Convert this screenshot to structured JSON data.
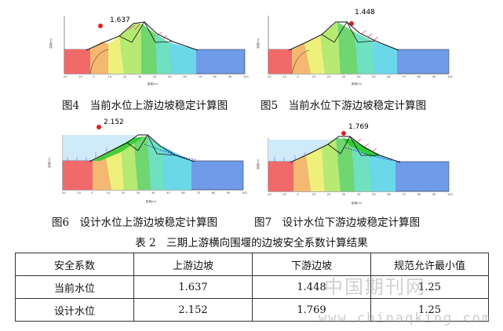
{
  "figures": [
    {
      "caption": "图4　当前水位上游边坡稳定计算图",
      "fs": "1.637",
      "scenario": "current-upstream"
    },
    {
      "caption": "图5　当前水位下游边坡稳定计算图",
      "fs": "1.448",
      "scenario": "current-downstream"
    },
    {
      "caption": "图6　设计水位上游边坡稳定计算图",
      "fs": "2.152",
      "scenario": "design-upstream"
    },
    {
      "caption": "图7　设计水位下游边坡稳定计算图",
      "fs": "1.769",
      "scenario": "design-downstream"
    }
  ],
  "axis": {
    "ylabel": "高程(m)",
    "xlabel": "距离(m)",
    "xticks": [
      "-20",
      "-10",
      "0",
      "10",
      "20",
      "30",
      "40",
      "50",
      "60",
      "70",
      "80",
      "90",
      "100"
    ]
  },
  "table": {
    "caption": "表 2　三期上游横向围堰的边坡安全系数计算结果",
    "headers": [
      "安全系数",
      "上游边坡",
      "下游边坡",
      "规范允许最小值"
    ],
    "rows": [
      [
        "当前水位",
        "1.637",
        "1.448",
        "1.25"
      ],
      [
        "设计水位",
        "2.152",
        "1.769",
        "1.25"
      ]
    ]
  },
  "watermark": {
    "cn": "中国期刊网",
    "en": "www.chinaqking.com"
  },
  "colors": {
    "slice_red": "#f06a6a",
    "slice_orange": "#f5b870",
    "slice_yellow": "#eef07a",
    "slice_green1": "#b6ea72",
    "slice_green2": "#6fd670",
    "slice_teal": "#6fe0c0",
    "slice_cyan": "#6ad8e8",
    "foundation_blue": "#6f9be8",
    "water": "#cfeaf8",
    "fs_dot": "#e02020"
  }
}
